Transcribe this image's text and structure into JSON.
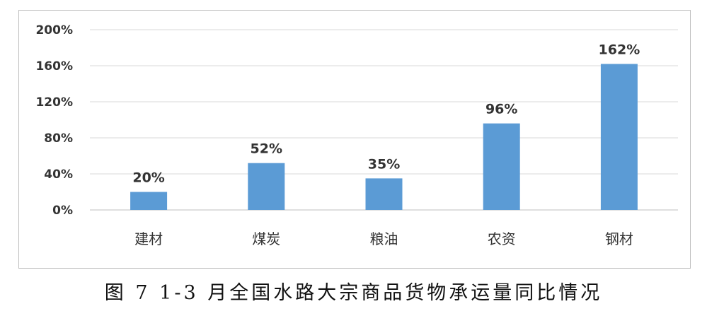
{
  "caption": "图 7 1-3 月全国水路大宗商品货物承运量同比情况",
  "colors": {
    "bar": "#5b9bd5",
    "grid": "#d9d9d9",
    "axis": "#bfbfbf"
  },
  "chart_data": {
    "type": "bar",
    "categories": [
      "建材",
      "煤炭",
      "粮油",
      "农资",
      "钢材"
    ],
    "values": [
      20,
      52,
      35,
      96,
      162
    ],
    "data_labels": [
      "20%",
      "52%",
      "35%",
      "96%",
      "162%"
    ],
    "yticks": [
      "0%",
      "40%",
      "80%",
      "120%",
      "160%",
      "200%"
    ],
    "ytick_values": [
      0,
      40,
      80,
      120,
      160,
      200
    ],
    "ylim": [
      0,
      200
    ],
    "grid": true,
    "legend": "none"
  }
}
